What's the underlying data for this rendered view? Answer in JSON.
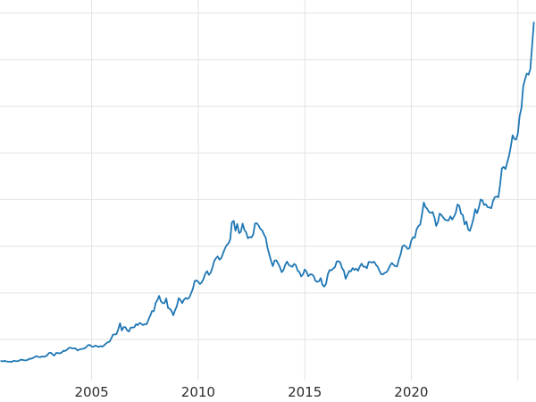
{
  "chart_data": {
    "type": "line",
    "title": "",
    "xlabel": "",
    "ylabel": "",
    "grid": true,
    "legend": false,
    "background": "#ffffff",
    "grid_color": "#e3e3e3",
    "tick_label_color": "#2b2b2b",
    "xlim": [
      2000.7,
      2025.85
    ],
    "ylim": [
      60,
      4140
    ],
    "x_ticks": [
      {
        "value": 2005,
        "label": "2005"
      },
      {
        "value": 2010,
        "label": "2010"
      },
      {
        "value": 2015,
        "label": "2015"
      },
      {
        "value": 2020,
        "label": "2020"
      }
    ],
    "x_gridlines": [
      2005,
      2010,
      2015,
      2020,
      2025
    ],
    "y_gridlines": [
      500,
      1000,
      1500,
      2000,
      2500,
      3000,
      3500,
      4000
    ],
    "series": [
      {
        "color": "#1f77b4",
        "x_start": 2000.75,
        "x_step": 0.0833333,
        "values": [
          270,
          266,
          272,
          265,
          262,
          263,
          260,
          272,
          270,
          267,
          272,
          283,
          283,
          276,
          276,
          281,
          295,
          294,
          302,
          314,
          321,
          313,
          310,
          319,
          316,
          319,
          333,
          356,
          359,
          340,
          328,
          355,
          356,
          351,
          360,
          379,
          378,
          389,
          407,
          414,
          405,
          406,
          403,
          383,
          392,
          398,
          400,
          405,
          420,
          439,
          442,
          424,
          423,
          434,
          429,
          421,
          430,
          424,
          437,
          456,
          470,
          476,
          510,
          550,
          555,
          557,
          611,
          675,
          596,
          634,
          632,
          598,
          586,
          627,
          629,
          631,
          665,
          655,
          679,
          667,
          655,
          665,
          665,
          713,
          755,
          806,
          803,
          890,
          922,
          968,
          910,
          889,
          889,
          940,
          839,
          829,
          807,
          760,
          816,
          858,
          943,
          924,
          890,
          928,
          946,
          934,
          949,
          996,
          1043,
          1127,
          1134,
          1118,
          1095,
          1113,
          1149,
          1205,
          1233,
          1193,
          1216,
          1271,
          1342,
          1370,
          1391,
          1356,
          1373,
          1424,
          1474,
          1511,
          1529,
          1573,
          1756,
          1772,
          1666,
          1739,
          1640,
          1656,
          1743,
          1674,
          1650,
          1586,
          1599,
          1594,
          1627,
          1744,
          1747,
          1722,
          1684,
          1671,
          1628,
          1593,
          1485,
          1414,
          1343,
          1287,
          1347,
          1349,
          1316,
          1276,
          1222,
          1244,
          1301,
          1336,
          1299,
          1288,
          1279,
          1311,
          1296,
          1238,
          1223,
          1176,
          1201,
          1251,
          1227,
          1178,
          1198,
          1199,
          1181,
          1130,
          1118,
          1125,
          1159,
          1086,
          1068,
          1098,
          1200,
          1246,
          1242,
          1261,
          1276,
          1337,
          1340,
          1327,
          1266,
          1238,
          1152,
          1192,
          1234,
          1231,
          1266,
          1246,
          1260,
          1237,
          1283,
          1314,
          1280,
          1282,
          1264,
          1331,
          1330,
          1325,
          1335,
          1303,
          1281,
          1238,
          1201,
          1198,
          1215,
          1221,
          1250,
          1292,
          1320,
          1301,
          1286,
          1284,
          1359,
          1413,
          1500,
          1511,
          1495,
          1471,
          1480,
          1561,
          1597,
          1592,
          1683,
          1716,
          1732,
          1843,
          1969,
          1922,
          1900,
          1866,
          1858,
          1867,
          1808,
          1718,
          1762,
          1850,
          1835,
          1807,
          1784,
          1777,
          1777,
          1820,
          1787,
          1817,
          1856,
          1948,
          1934,
          1848,
          1836,
          1733,
          1765,
          1681,
          1664,
          1725,
          1797,
          1898,
          1855,
          1913,
          2000,
          1992,
          1943,
          1951,
          1918,
          1916,
          1907,
          1984,
          2026,
          2034,
          2025,
          2160,
          2335,
          2351,
          2327,
          2398,
          2470,
          2568,
          2690,
          2651,
          2643,
          2708,
          2897,
          2983,
          3218,
          3289,
          3352,
          3338,
          3398,
          3643,
          3900
        ]
      }
    ]
  }
}
